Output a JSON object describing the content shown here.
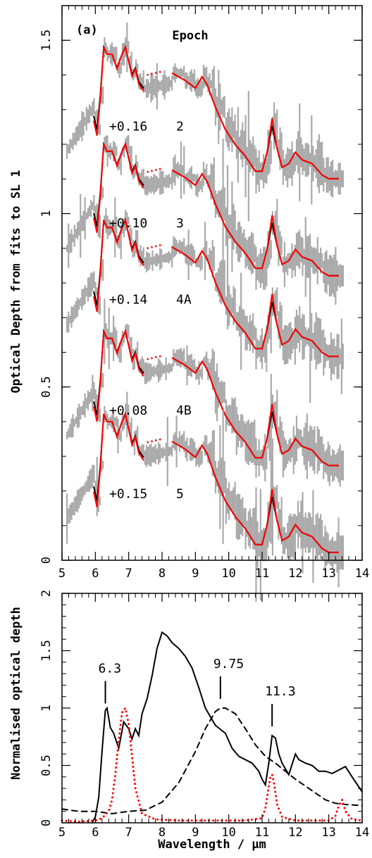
{
  "chart_data": [
    {
      "type": "line",
      "panel_label": "(a)",
      "ylabel": "Optical Depth from fits to SL 1",
      "xlim": [
        5,
        14
      ],
      "ylim": [
        0,
        1.6
      ],
      "xticks": [
        "5",
        "6",
        "7",
        "8",
        "9",
        "10",
        "11",
        "12",
        "13",
        "14"
      ],
      "yticks": [
        {
          "v": 0,
          "label": "0"
        },
        {
          "v": 0.5,
          "label": "0.5"
        },
        {
          "v": 1,
          "label": "1"
        },
        {
          "v": 1.5,
          "label": "1.5"
        }
      ],
      "legend_title": "Epoch",
      "series_colors": {
        "data": "#aaaaaa",
        "model_black": "#000000",
        "model_red": "#ff0000"
      },
      "epochs": [
        {
          "label": "2",
          "offset_label": "+0.16",
          "base": 1.46,
          "end": 1.28
        },
        {
          "label": "3",
          "offset_label": "+0.10",
          "base": 1.18,
          "end": 1.0
        },
        {
          "label": "4A",
          "offset_label": "+0.14",
          "base": 0.96,
          "end": 0.71
        },
        {
          "label": "4B",
          "offset_label": "+0.08",
          "base": 0.64,
          "end": 0.42
        },
        {
          "label": "5",
          "offset_label": "+0.15",
          "base": 0.4,
          "end": 0.12
        }
      ]
    },
    {
      "type": "line",
      "xlabel": "Wavelength / μm",
      "ylabel": "Normalised optical depth",
      "xlim": [
        5,
        14
      ],
      "ylim": [
        0,
        2
      ],
      "xticks": [
        "5",
        "6",
        "7",
        "8",
        "9",
        "10",
        "11",
        "12",
        "13",
        "14"
      ],
      "yticks": [
        {
          "v": 0,
          "label": "0"
        },
        {
          "v": 0.5,
          "label": "0.5"
        },
        {
          "v": 1,
          "label": "1"
        },
        {
          "v": 1.5,
          "label": "1.5"
        },
        {
          "v": 2,
          "label": "2"
        }
      ],
      "annotations": [
        {
          "text": "6.3",
          "x": 6.3,
          "y": 1.04
        },
        {
          "text": "9.75",
          "x": 9.75,
          "y": 1.08
        },
        {
          "text": "11.3",
          "x": 11.3,
          "y": 0.84
        }
      ],
      "series": [
        {
          "style": "solid",
          "color": "#000000",
          "x": [
            5.9,
            6.0,
            6.1,
            6.2,
            6.3,
            6.35,
            6.45,
            6.55,
            6.7,
            6.85,
            7.0,
            7.1,
            7.2,
            7.3,
            7.4,
            7.55,
            7.7,
            7.85,
            8.0,
            8.15,
            8.3,
            8.5,
            8.7,
            8.9,
            9.1,
            9.3,
            9.6,
            9.9,
            10.1,
            10.3,
            10.5,
            10.7,
            10.9,
            11.0,
            11.1,
            11.2,
            11.3,
            11.4,
            11.5,
            11.6,
            11.8,
            12.0,
            12.1,
            12.3,
            12.5,
            12.7,
            12.9,
            13.1,
            13.3,
            13.5,
            13.7,
            14.0
          ],
          "y": [
            0.0,
            0.05,
            0.22,
            0.62,
            0.98,
            1.0,
            0.83,
            0.78,
            0.65,
            0.88,
            0.82,
            0.73,
            0.82,
            0.76,
            0.95,
            1.08,
            1.28,
            1.52,
            1.66,
            1.63,
            1.57,
            1.52,
            1.45,
            1.35,
            1.18,
            1.0,
            0.85,
            0.78,
            0.65,
            0.58,
            0.55,
            0.52,
            0.45,
            0.38,
            0.33,
            0.52,
            0.76,
            0.74,
            0.6,
            0.52,
            0.42,
            0.6,
            0.55,
            0.52,
            0.5,
            0.45,
            0.45,
            0.43,
            0.46,
            0.49,
            0.4,
            0.27
          ]
        },
        {
          "style": "dashed",
          "color": "#000000",
          "x": [
            5.0,
            5.5,
            6.0,
            6.5,
            7.0,
            7.5,
            8.0,
            8.5,
            9.0,
            9.3,
            9.6,
            9.75,
            9.9,
            10.2,
            10.5,
            10.8,
            11.1,
            11.4,
            11.7,
            12.0,
            12.3,
            12.6,
            12.9,
            13.2,
            13.5,
            14.0
          ],
          "y": [
            0.12,
            0.1,
            0.1,
            0.08,
            0.1,
            0.11,
            0.18,
            0.35,
            0.62,
            0.82,
            0.97,
            1.0,
            1.0,
            0.95,
            0.82,
            0.68,
            0.58,
            0.52,
            0.45,
            0.38,
            0.32,
            0.26,
            0.2,
            0.17,
            0.16,
            0.15
          ]
        },
        {
          "style": "dotted",
          "color": "#ff0000",
          "x": [
            5.0,
            5.5,
            6.0,
            6.2,
            6.4,
            6.5,
            6.6,
            6.7,
            6.8,
            6.9,
            7.0,
            7.1,
            7.2,
            7.4,
            7.8,
            8.5,
            9.5,
            10.5,
            11.0,
            11.1,
            11.2,
            11.25,
            11.3,
            11.35,
            11.45,
            11.6,
            12.0,
            12.5,
            13.0,
            13.2,
            13.3,
            13.4,
            13.5,
            13.7,
            14.0
          ],
          "y": [
            0.02,
            0.01,
            0.02,
            0.04,
            0.1,
            0.2,
            0.42,
            0.72,
            0.96,
            1.0,
            0.86,
            0.58,
            0.3,
            0.08,
            0.03,
            0.02,
            0.02,
            0.02,
            0.04,
            0.13,
            0.32,
            0.4,
            0.42,
            0.36,
            0.16,
            0.05,
            0.02,
            0.02,
            0.02,
            0.06,
            0.15,
            0.2,
            0.1,
            0.03,
            0.02
          ]
        }
      ]
    }
  ]
}
